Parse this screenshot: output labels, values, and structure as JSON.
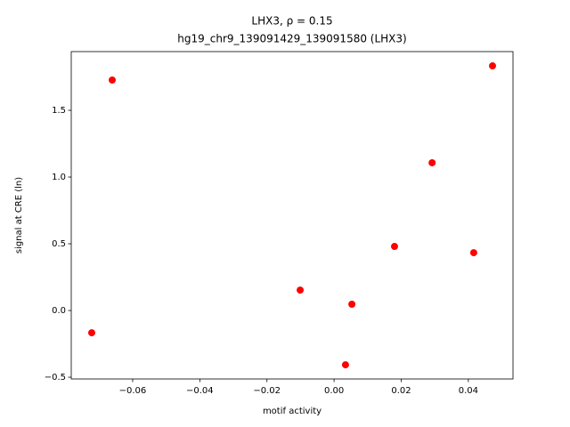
{
  "chart_data": {
    "type": "scatter",
    "title": "LHX3, ρ = 0.15",
    "subtitle": "hg19_chr9_139091429_139091580 (LHX3)",
    "x_label": "motif activity",
    "y_label": "signal at CRE (ln)",
    "x": [
      -0.0661,
      -0.0722,
      -0.0101,
      0.0053,
      0.0034,
      0.018,
      0.0292,
      0.0416,
      0.0472
    ],
    "values": [
      1.727,
      -0.167,
      0.153,
      0.047,
      -0.407,
      0.48,
      1.107,
      0.433,
      1.833
    ],
    "color": "#ff0000",
    "xlim": [
      -0.0783,
      0.0533
    ],
    "ylim": [
      -0.513,
      1.94
    ],
    "xticks": [
      {
        "value": -0.06,
        "label": "−0.06"
      },
      {
        "value": -0.04,
        "label": "−0.04"
      },
      {
        "value": -0.02,
        "label": "−0.02"
      },
      {
        "value": 0,
        "label": "0.00"
      },
      0.02,
      0.04
    ],
    "yticks": [
      {
        "value": -0.5,
        "label": "−0.5"
      },
      {
        "value": 0,
        "label": "0.0"
      },
      0.5,
      {
        "value": 1,
        "label": "1.0"
      },
      1.5
    ],
    "grid": false
  }
}
